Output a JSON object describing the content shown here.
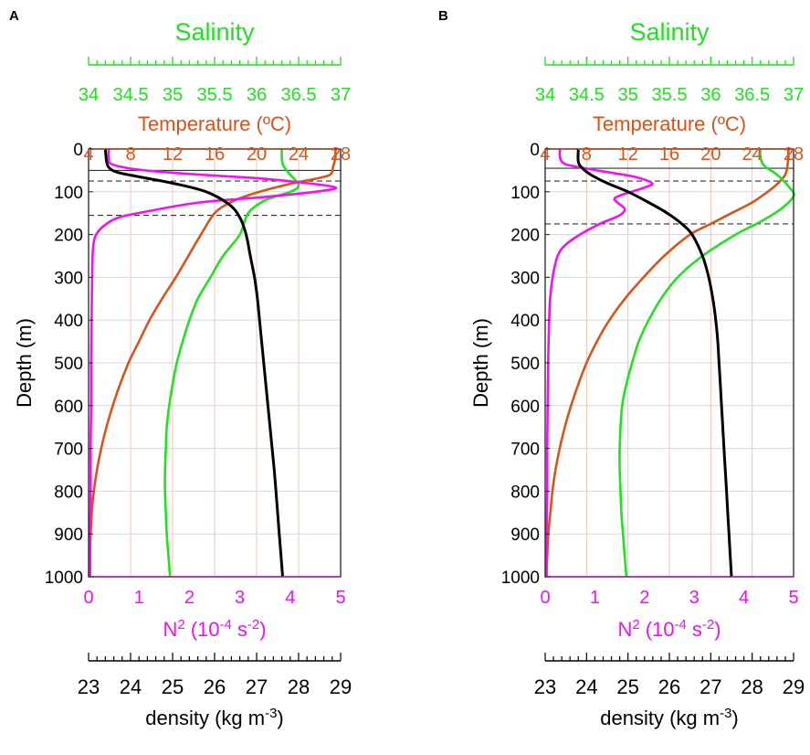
{
  "figure": {
    "colors": {
      "salinity": "#22e022",
      "temperature": "#d9541a",
      "n2": "#f012f0",
      "density": "#000000",
      "grid": "#f2c4b4",
      "hgrid": "#d8d8d8"
    }
  },
  "chart_data": [
    {
      "panel_label": "A",
      "type": "line",
      "y_axis": {
        "label": "Depth (m)",
        "ylim": [
          1000,
          0
        ],
        "ticks": [
          "0",
          "100",
          "200",
          "300",
          "400",
          "500",
          "600",
          "700",
          "800",
          "900",
          "1000"
        ],
        "inverted": true
      },
      "axes": {
        "salinity": {
          "title": "Salinity",
          "xlim": [
            34,
            37
          ],
          "ticks": [
            "34",
            "34.5",
            "35",
            "35.5",
            "36",
            "36.5",
            "37"
          ],
          "position": "top-outer"
        },
        "temperature": {
          "title": "Temperature (ºC)",
          "xlim": [
            4,
            28
          ],
          "ticks": [
            "4",
            "8",
            "12",
            "16",
            "20",
            "24",
            "28"
          ],
          "position": "top-inner"
        },
        "n2": {
          "title_base": "N",
          "title_sup": "2",
          "title_unit": "(10",
          "title_exp": "-4",
          "title_s": "s",
          "title_sexp": "-2",
          "title_close": ")",
          "xlim": [
            0,
            5
          ],
          "ticks": [
            "0",
            "1",
            "2",
            "3",
            "4",
            "5"
          ],
          "position": "bottom-inner"
        },
        "density": {
          "title_base": "density (kg m",
          "title_sup": "-3",
          "title_close": ")",
          "xlim": [
            23,
            29
          ],
          "ticks": [
            "23",
            "24",
            "25",
            "26",
            "27",
            "28",
            "29"
          ],
          "position": "bottom-outer"
        }
      },
      "grid": true,
      "horizontal_lines": [
        {
          "depth": 50,
          "style": "solid"
        },
        {
          "depth": 75,
          "style": "dashed"
        },
        {
          "depth": 155,
          "style": "dashed"
        }
      ],
      "series": [
        {
          "key": "temperature",
          "axis": "temperature",
          "points": [
            [
              27.5,
              0
            ],
            [
              27.5,
              20
            ],
            [
              27.3,
              40
            ],
            [
              27,
              60
            ],
            [
              25.5,
              70
            ],
            [
              23.5,
              80
            ],
            [
              21,
              95
            ],
            [
              19,
              110
            ],
            [
              17.5,
              125
            ],
            [
              16,
              150
            ],
            [
              14.7,
              200
            ],
            [
              13.5,
              250
            ],
            [
              12.3,
              300
            ],
            [
              11,
              350
            ],
            [
              9.8,
              400
            ],
            [
              8.8,
              450
            ],
            [
              7.8,
              500
            ],
            [
              7,
              550
            ],
            [
              6.3,
              600
            ],
            [
              5.7,
              650
            ],
            [
              5.2,
              700
            ],
            [
              4.8,
              750
            ],
            [
              4.5,
              800
            ],
            [
              4.3,
              850
            ],
            [
              4.2,
              900
            ],
            [
              4.1,
              950
            ],
            [
              4.05,
              1000
            ]
          ]
        },
        {
          "key": "salinity",
          "axis": "salinity",
          "points": [
            [
              36.3,
              0
            ],
            [
              36.3,
              20
            ],
            [
              36.32,
              40
            ],
            [
              36.4,
              60
            ],
            [
              36.5,
              85
            ],
            [
              36.4,
              100
            ],
            [
              36.1,
              120
            ],
            [
              35.9,
              150
            ],
            [
              35.8,
              200
            ],
            [
              35.6,
              250
            ],
            [
              35.45,
              300
            ],
            [
              35.3,
              350
            ],
            [
              35.2,
              400
            ],
            [
              35.12,
              450
            ],
            [
              35.05,
              500
            ],
            [
              35,
              550
            ],
            [
              34.96,
              600
            ],
            [
              34.93,
              650
            ],
            [
              34.92,
              700
            ],
            [
              34.91,
              750
            ],
            [
              34.91,
              800
            ],
            [
              34.92,
              850
            ],
            [
              34.93,
              900
            ],
            [
              34.95,
              950
            ],
            [
              34.97,
              1000
            ]
          ]
        },
        {
          "key": "n2",
          "axis": "n2",
          "points": [
            [
              0.4,
              0
            ],
            [
              0.4,
              20
            ],
            [
              0.45,
              35
            ],
            [
              0.8,
              45
            ],
            [
              1.3,
              52
            ],
            [
              2.2,
              60
            ],
            [
              3.3,
              68
            ],
            [
              4.2,
              78
            ],
            [
              4.9,
              90
            ],
            [
              4.5,
              100
            ],
            [
              3.5,
              112
            ],
            [
              2.2,
              125
            ],
            [
              1.2,
              145
            ],
            [
              0.6,
              160
            ],
            [
              0.3,
              180
            ],
            [
              0.15,
              200
            ],
            [
              0.1,
              220
            ],
            [
              0.08,
              250
            ],
            [
              0.07,
              300
            ],
            [
              0.06,
              400
            ],
            [
              0.05,
              500
            ],
            [
              0.05,
              600
            ],
            [
              0.04,
              700
            ],
            [
              0.04,
              800
            ],
            [
              0.03,
              900
            ],
            [
              0.03,
              1000
            ]
          ]
        },
        {
          "key": "density",
          "axis": "density",
          "points": [
            [
              23.4,
              0
            ],
            [
              23.43,
              30
            ],
            [
              23.5,
              45
            ],
            [
              23.7,
              55
            ],
            [
              24.2,
              65
            ],
            [
              25,
              80
            ],
            [
              25.8,
              100
            ],
            [
              26.35,
              130
            ],
            [
              26.6,
              160
            ],
            [
              26.75,
              200
            ],
            [
              26.85,
              250
            ],
            [
              26.95,
              300
            ],
            [
              27.02,
              350
            ],
            [
              27.07,
              400
            ],
            [
              27.12,
              450
            ],
            [
              27.17,
              500
            ],
            [
              27.22,
              550
            ],
            [
              27.27,
              600
            ],
            [
              27.32,
              650
            ],
            [
              27.37,
              700
            ],
            [
              27.42,
              750
            ],
            [
              27.46,
              800
            ],
            [
              27.5,
              850
            ],
            [
              27.54,
              900
            ],
            [
              27.58,
              950
            ],
            [
              27.62,
              1000
            ]
          ]
        }
      ]
    },
    {
      "panel_label": "B",
      "type": "line",
      "y_axis": {
        "label": "Depth (m)",
        "ylim": [
          1000,
          0
        ],
        "ticks": [
          "0",
          "100",
          "200",
          "300",
          "400",
          "500",
          "600",
          "700",
          "800",
          "900",
          "1000"
        ],
        "inverted": true
      },
      "axes": {
        "salinity": {
          "title": "Salinity",
          "xlim": [
            34,
            37
          ],
          "ticks": [
            "34",
            "34.5",
            "35",
            "35.5",
            "36",
            "36.5",
            "37"
          ],
          "position": "top-outer"
        },
        "temperature": {
          "title": "Temperature (ºC)",
          "xlim": [
            4,
            28
          ],
          "ticks": [
            "4",
            "8",
            "12",
            "16",
            "20",
            "24",
            "28"
          ],
          "position": "top-inner"
        },
        "n2": {
          "title_base": "N",
          "title_sup": "2",
          "title_unit": "(10",
          "title_exp": "-4",
          "title_s": "s",
          "title_sexp": "-2",
          "title_close": ")",
          "xlim": [
            0,
            5
          ],
          "ticks": [
            "0",
            "1",
            "2",
            "3",
            "4",
            "5"
          ],
          "position": "bottom-inner"
        },
        "density": {
          "title_base": "density (kg m",
          "title_sup": "-3",
          "title_close": ")",
          "xlim": [
            23,
            29
          ],
          "ticks": [
            "23",
            "24",
            "25",
            "26",
            "27",
            "28",
            "29"
          ],
          "position": "bottom-outer"
        }
      },
      "grid": true,
      "horizontal_lines": [
        {
          "depth": 45,
          "style": "solid"
        },
        {
          "depth": 75,
          "style": "dashed"
        },
        {
          "depth": 175,
          "style": "dashed"
        }
      ],
      "series": [
        {
          "key": "temperature",
          "axis": "temperature",
          "points": [
            [
              27.5,
              0
            ],
            [
              27.5,
              20
            ],
            [
              27.4,
              40
            ],
            [
              27.2,
              60
            ],
            [
              26.5,
              80
            ],
            [
              25.5,
              100
            ],
            [
              24,
              125
            ],
            [
              22,
              150
            ],
            [
              20,
              175
            ],
            [
              18,
              200
            ],
            [
              15.5,
              250
            ],
            [
              13.5,
              300
            ],
            [
              11.7,
              350
            ],
            [
              10.2,
              400
            ],
            [
              9,
              450
            ],
            [
              8,
              500
            ],
            [
              7.2,
              550
            ],
            [
              6.5,
              600
            ],
            [
              5.9,
              650
            ],
            [
              5.4,
              700
            ],
            [
              5,
              750
            ],
            [
              4.7,
              800
            ],
            [
              4.5,
              850
            ],
            [
              4.3,
              900
            ],
            [
              4.2,
              950
            ],
            [
              4.1,
              1000
            ]
          ]
        },
        {
          "key": "salinity",
          "axis": "salinity",
          "points": [
            [
              36.6,
              0
            ],
            [
              36.6,
              20
            ],
            [
              36.65,
              40
            ],
            [
              36.8,
              60
            ],
            [
              36.95,
              90
            ],
            [
              37,
              110
            ],
            [
              36.85,
              140
            ],
            [
              36.6,
              170
            ],
            [
              36.3,
              200
            ],
            [
              35.9,
              250
            ],
            [
              35.6,
              300
            ],
            [
              35.4,
              350
            ],
            [
              35.25,
              400
            ],
            [
              35.13,
              450
            ],
            [
              35.05,
              500
            ],
            [
              34.98,
              550
            ],
            [
              34.93,
              600
            ],
            [
              34.91,
              650
            ],
            [
              34.9,
              700
            ],
            [
              34.9,
              750
            ],
            [
              34.91,
              800
            ],
            [
              34.92,
              850
            ],
            [
              34.94,
              900
            ],
            [
              34.96,
              950
            ],
            [
              34.98,
              1000
            ]
          ]
        },
        {
          "key": "n2",
          "axis": "n2",
          "points": [
            [
              0.3,
              0
            ],
            [
              0.3,
              20
            ],
            [
              0.4,
              35
            ],
            [
              0.8,
              45
            ],
            [
              1.3,
              55
            ],
            [
              1.8,
              65
            ],
            [
              2.15,
              80
            ],
            [
              2,
              90
            ],
            [
              1.6,
              105
            ],
            [
              1.4,
              115
            ],
            [
              1.45,
              125
            ],
            [
              1.6,
              140
            ],
            [
              1.5,
              155
            ],
            [
              1.1,
              175
            ],
            [
              0.7,
              200
            ],
            [
              0.4,
              225
            ],
            [
              0.25,
              250
            ],
            [
              0.15,
              300
            ],
            [
              0.1,
              350
            ],
            [
              0.08,
              400
            ],
            [
              0.06,
              500
            ],
            [
              0.05,
              600
            ],
            [
              0.04,
              700
            ],
            [
              0.04,
              800
            ],
            [
              0.03,
              900
            ],
            [
              0.03,
              1000
            ]
          ]
        },
        {
          "key": "density",
          "axis": "density",
          "points": [
            [
              23.8,
              0
            ],
            [
              23.8,
              30
            ],
            [
              23.9,
              45
            ],
            [
              24.1,
              60
            ],
            [
              24.5,
              80
            ],
            [
              25,
              100
            ],
            [
              25.5,
              125
            ],
            [
              25.95,
              150
            ],
            [
              26.3,
              175
            ],
            [
              26.55,
              200
            ],
            [
              26.8,
              250
            ],
            [
              26.95,
              300
            ],
            [
              27.05,
              350
            ],
            [
              27.12,
              400
            ],
            [
              27.17,
              450
            ],
            [
              27.2,
              500
            ],
            [
              27.23,
              550
            ],
            [
              27.26,
              600
            ],
            [
              27.29,
              650
            ],
            [
              27.32,
              700
            ],
            [
              27.35,
              750
            ],
            [
              27.38,
              800
            ],
            [
              27.41,
              850
            ],
            [
              27.44,
              900
            ],
            [
              27.47,
              950
            ],
            [
              27.5,
              1000
            ]
          ]
        }
      ]
    }
  ]
}
